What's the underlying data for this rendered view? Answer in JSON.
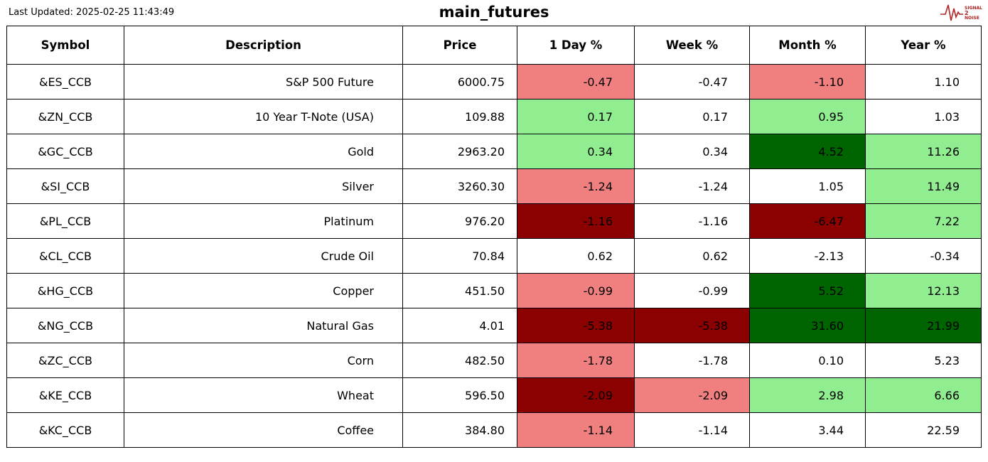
{
  "header": {
    "last_updated": "Last Updated: 2025-02-25 11:43:49",
    "title": "main_futures",
    "logo": {
      "line1": "SIGNAL",
      "line2": "2",
      "line3": "NOISE",
      "color": "#b22222"
    }
  },
  "colors": {
    "positive_light": "#90ee90",
    "positive_dark": "#006400",
    "negative_light": "#f08080",
    "negative_dark": "#8b0000",
    "neutral": "#ffffff"
  },
  "chart_data": {
    "type": "table",
    "title": "main_futures",
    "columns": [
      "Symbol",
      "Description",
      "Price",
      "1 Day %",
      "Week %",
      "Month %",
      "Year %"
    ],
    "rows": [
      {
        "symbol": "&ES_CCB",
        "description": "S&P 500 Future",
        "price": "6000.75",
        "cells": [
          {
            "value": "-0.47",
            "bg": "negative_light"
          },
          {
            "value": "-0.47",
            "bg": "neutral"
          },
          {
            "value": "-1.10",
            "bg": "negative_light"
          },
          {
            "value": "1.10",
            "bg": "neutral"
          }
        ]
      },
      {
        "symbol": "&ZN_CCB",
        "description": "10 Year T-Note (USA)",
        "price": "109.88",
        "cells": [
          {
            "value": "0.17",
            "bg": "positive_light"
          },
          {
            "value": "0.17",
            "bg": "neutral"
          },
          {
            "value": "0.95",
            "bg": "positive_light"
          },
          {
            "value": "1.03",
            "bg": "neutral"
          }
        ]
      },
      {
        "symbol": "&GC_CCB",
        "description": "Gold",
        "price": "2963.20",
        "cells": [
          {
            "value": "0.34",
            "bg": "positive_light"
          },
          {
            "value": "0.34",
            "bg": "neutral"
          },
          {
            "value": "4.52",
            "bg": "positive_dark"
          },
          {
            "value": "11.26",
            "bg": "positive_light"
          }
        ]
      },
      {
        "symbol": "&SI_CCB",
        "description": "Silver",
        "price": "3260.30",
        "cells": [
          {
            "value": "-1.24",
            "bg": "negative_light"
          },
          {
            "value": "-1.24",
            "bg": "neutral"
          },
          {
            "value": "1.05",
            "bg": "neutral"
          },
          {
            "value": "11.49",
            "bg": "positive_light"
          }
        ]
      },
      {
        "symbol": "&PL_CCB",
        "description": "Platinum",
        "price": "976.20",
        "cells": [
          {
            "value": "-1.16",
            "bg": "negative_dark"
          },
          {
            "value": "-1.16",
            "bg": "neutral"
          },
          {
            "value": "-6.47",
            "bg": "negative_dark"
          },
          {
            "value": "7.22",
            "bg": "positive_light"
          }
        ]
      },
      {
        "symbol": "&CL_CCB",
        "description": "Crude Oil",
        "price": "70.84",
        "cells": [
          {
            "value": "0.62",
            "bg": "neutral"
          },
          {
            "value": "0.62",
            "bg": "neutral"
          },
          {
            "value": "-2.13",
            "bg": "neutral"
          },
          {
            "value": "-0.34",
            "bg": "neutral"
          }
        ]
      },
      {
        "symbol": "&HG_CCB",
        "description": "Copper",
        "price": "451.50",
        "cells": [
          {
            "value": "-0.99",
            "bg": "negative_light"
          },
          {
            "value": "-0.99",
            "bg": "neutral"
          },
          {
            "value": "5.52",
            "bg": "positive_dark"
          },
          {
            "value": "12.13",
            "bg": "positive_light"
          }
        ]
      },
      {
        "symbol": "&NG_CCB",
        "description": "Natural Gas",
        "price": "4.01",
        "cells": [
          {
            "value": "-5.38",
            "bg": "negative_dark"
          },
          {
            "value": "-5.38",
            "bg": "negative_dark"
          },
          {
            "value": "31.60",
            "bg": "positive_dark"
          },
          {
            "value": "21.99",
            "bg": "positive_dark"
          }
        ]
      },
      {
        "symbol": "&ZC_CCB",
        "description": "Corn",
        "price": "482.50",
        "cells": [
          {
            "value": "-1.78",
            "bg": "negative_light"
          },
          {
            "value": "-1.78",
            "bg": "neutral"
          },
          {
            "value": "0.10",
            "bg": "neutral"
          },
          {
            "value": "5.23",
            "bg": "neutral"
          }
        ]
      },
      {
        "symbol": "&KE_CCB",
        "description": "Wheat",
        "price": "596.50",
        "cells": [
          {
            "value": "-2.09",
            "bg": "negative_dark"
          },
          {
            "value": "-2.09",
            "bg": "negative_light"
          },
          {
            "value": "2.98",
            "bg": "positive_light"
          },
          {
            "value": "6.66",
            "bg": "positive_light"
          }
        ]
      },
      {
        "symbol": "&KC_CCB",
        "description": "Coffee",
        "price": "384.80",
        "cells": [
          {
            "value": "-1.14",
            "bg": "negative_light"
          },
          {
            "value": "-1.14",
            "bg": "neutral"
          },
          {
            "value": "3.44",
            "bg": "neutral"
          },
          {
            "value": "22.59",
            "bg": "neutral"
          }
        ]
      }
    ]
  }
}
